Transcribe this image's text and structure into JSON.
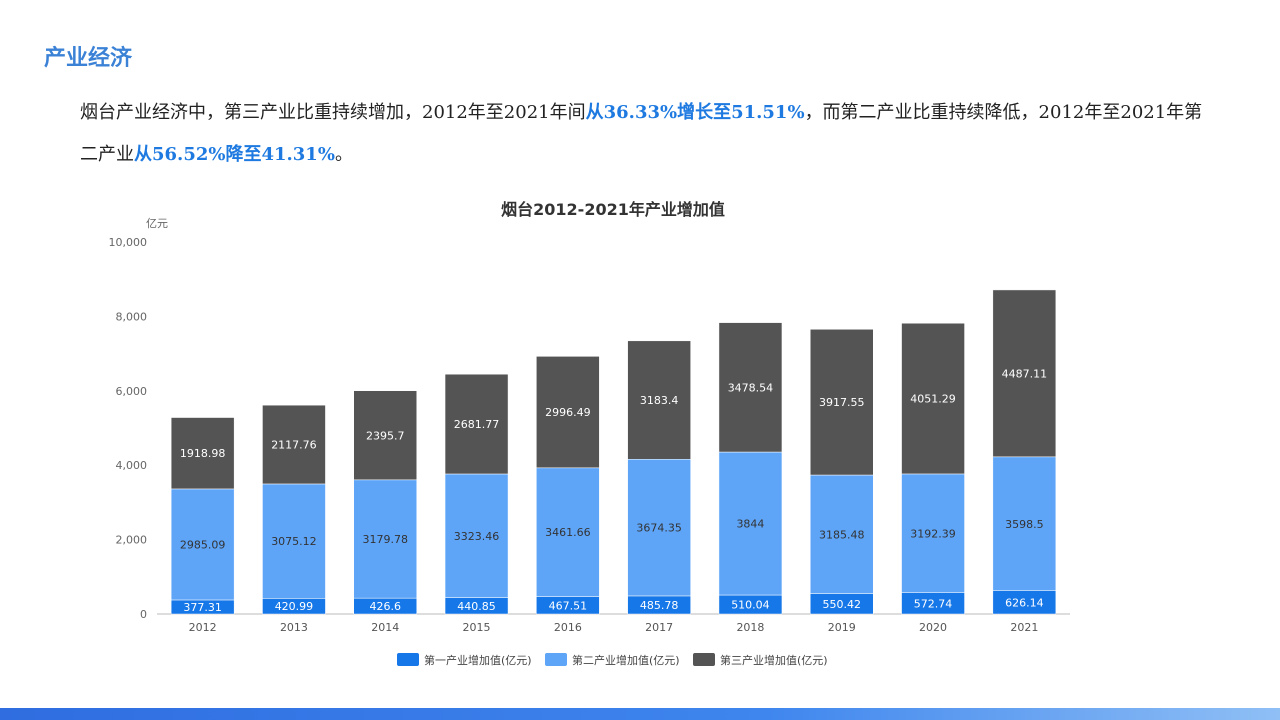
{
  "page": {
    "section_title": "产业经济",
    "intro": {
      "p1": "烟台产业经济中，第三产业比重持续增加，2012年至2021年间",
      "h1": "从36.33%增长至51.51%",
      "p2": "，而第二产业比重持续降低，2012年至2021年第二产业",
      "h2": "从56.52%降至41.31%",
      "p3": "。"
    }
  },
  "colors": {
    "accent": "#3b82d6",
    "highlight": "#1e7ae0",
    "primary": "#1677e8",
    "secondary": "#5ea5f8",
    "tertiary": "#545454"
  },
  "chart_data": {
    "type": "bar",
    "stacked": true,
    "title": "烟台2012-2021年产业增加值",
    "ylabel": "亿元",
    "xlabel": "",
    "ylim": [
      0,
      10000
    ],
    "yticks": [
      0,
      2000,
      4000,
      6000,
      8000,
      10000
    ],
    "ytick_labels": [
      "0",
      "2,000",
      "4,000",
      "6,000",
      "8,000",
      "10,000"
    ],
    "categories": [
      "2012",
      "2013",
      "2014",
      "2015",
      "2016",
      "2017",
      "2018",
      "2019",
      "2020",
      "2021"
    ],
    "series": [
      {
        "name": "第一产业增加值(亿元)",
        "color": "#1677e8",
        "label_color": "#ffffff",
        "values": [
          377.31,
          420.99,
          426.6,
          440.85,
          467.51,
          485.78,
          510.04,
          550.42,
          572.74,
          626.14
        ]
      },
      {
        "name": "第二产业增加值(亿元)",
        "color": "#5ea5f8",
        "label_color": "#333333",
        "values": [
          2985.09,
          3075.12,
          3179.78,
          3323.46,
          3461.66,
          3674.35,
          3844,
          3185.48,
          3192.39,
          3598.5
        ]
      },
      {
        "name": "第三产业增加值(亿元)",
        "color": "#545454",
        "label_color": "#ffffff",
        "values": [
          1918.98,
          2117.76,
          2395.7,
          2681.77,
          2996.49,
          3183.4,
          3478.54,
          3917.55,
          4051.29,
          4487.11
        ]
      }
    ],
    "legend_position": "bottom-center"
  }
}
